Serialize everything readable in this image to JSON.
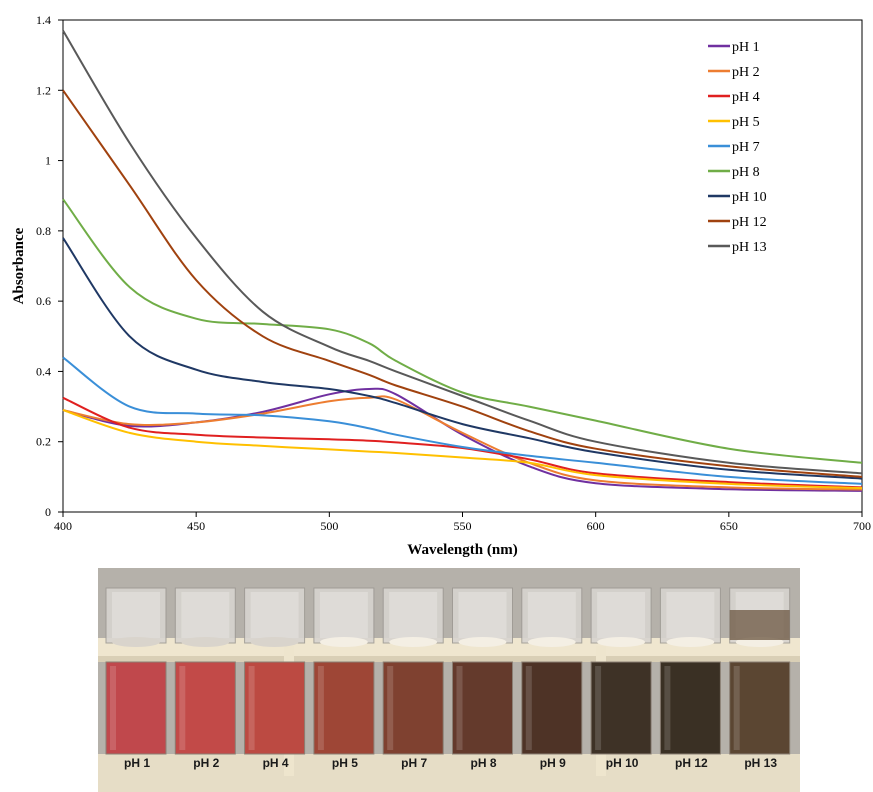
{
  "chart_data": {
    "type": "line",
    "xlabel": "Wavelength (nm)",
    "ylabel": "Absorbance",
    "xlim": [
      400,
      700
    ],
    "ylim": [
      0,
      1.4
    ],
    "xticks": [
      400,
      450,
      500,
      550,
      600,
      650,
      700
    ],
    "yticks": [
      0,
      0.2,
      0.4,
      0.6,
      0.8,
      1,
      1.2,
      1.4
    ],
    "xtick_labels": [
      "400",
      "450",
      "500",
      "550",
      "600",
      "650",
      "700"
    ],
    "ytick_labels": [
      "0",
      "0.2",
      "0.4",
      "0.6",
      "0.8",
      "1",
      "1.2",
      "1.4"
    ],
    "grid": false,
    "legend_position": "top-right",
    "x": [
      400,
      425,
      450,
      475,
      500,
      515,
      525,
      550,
      575,
      600,
      650,
      700
    ],
    "series": [
      {
        "name": "pH 1",
        "color": "#7030a0",
        "values": [
          0.29,
          0.245,
          0.255,
          0.285,
          0.335,
          0.35,
          0.335,
          0.22,
          0.13,
          0.082,
          0.065,
          0.06
        ]
      },
      {
        "name": "pH 2",
        "color": "#ed7d31",
        "values": [
          0.29,
          0.25,
          0.255,
          0.28,
          0.315,
          0.325,
          0.32,
          0.225,
          0.14,
          0.09,
          0.07,
          0.064
        ]
      },
      {
        "name": "pH 4",
        "color": "#e02020",
        "values": [
          0.325,
          0.24,
          0.22,
          0.212,
          0.207,
          0.203,
          0.198,
          0.182,
          0.15,
          0.11,
          0.085,
          0.07
        ]
      },
      {
        "name": "pH 5",
        "color": "#ffc000",
        "values": [
          0.29,
          0.225,
          0.2,
          0.188,
          0.178,
          0.172,
          0.168,
          0.155,
          0.14,
          0.105,
          0.08,
          0.068
        ]
      },
      {
        "name": "pH 7",
        "color": "#3a8fd8",
        "values": [
          0.44,
          0.3,
          0.28,
          0.275,
          0.258,
          0.238,
          0.22,
          0.185,
          0.16,
          0.14,
          0.1,
          0.08
        ]
      },
      {
        "name": "pH 8",
        "color": "#70ad47",
        "values": [
          0.89,
          0.64,
          0.55,
          0.535,
          0.52,
          0.48,
          0.43,
          0.34,
          0.3,
          0.26,
          0.18,
          0.14
        ]
      },
      {
        "name": "pH 10",
        "color": "#1f3864",
        "values": [
          0.78,
          0.5,
          0.405,
          0.37,
          0.35,
          0.33,
          0.31,
          0.25,
          0.21,
          0.17,
          0.12,
          0.095
        ]
      },
      {
        "name": "pH 12",
        "color": "#a0420f",
        "values": [
          1.2,
          0.93,
          0.66,
          0.5,
          0.43,
          0.39,
          0.36,
          0.3,
          0.23,
          0.18,
          0.13,
          0.1
        ]
      },
      {
        "name": "pH 13",
        "color": "#595959",
        "values": [
          1.37,
          1.05,
          0.78,
          0.57,
          0.47,
          0.43,
          0.4,
          0.33,
          0.26,
          0.2,
          0.14,
          0.11
        ]
      }
    ]
  },
  "photo": {
    "labels": [
      "pH 1",
      "pH 2",
      "pH 4",
      "pH 5",
      "pH 7",
      "pH 8",
      "pH 9",
      "pH 10",
      "pH 12",
      "pH 13"
    ],
    "colors": [
      "#c0484c",
      "#c24a48",
      "#bc4a42",
      "#9e4636",
      "#7f4130",
      "#643a2c",
      "#4e3326",
      "#3e3226",
      "#3a3024",
      "#5b4632"
    ]
  }
}
